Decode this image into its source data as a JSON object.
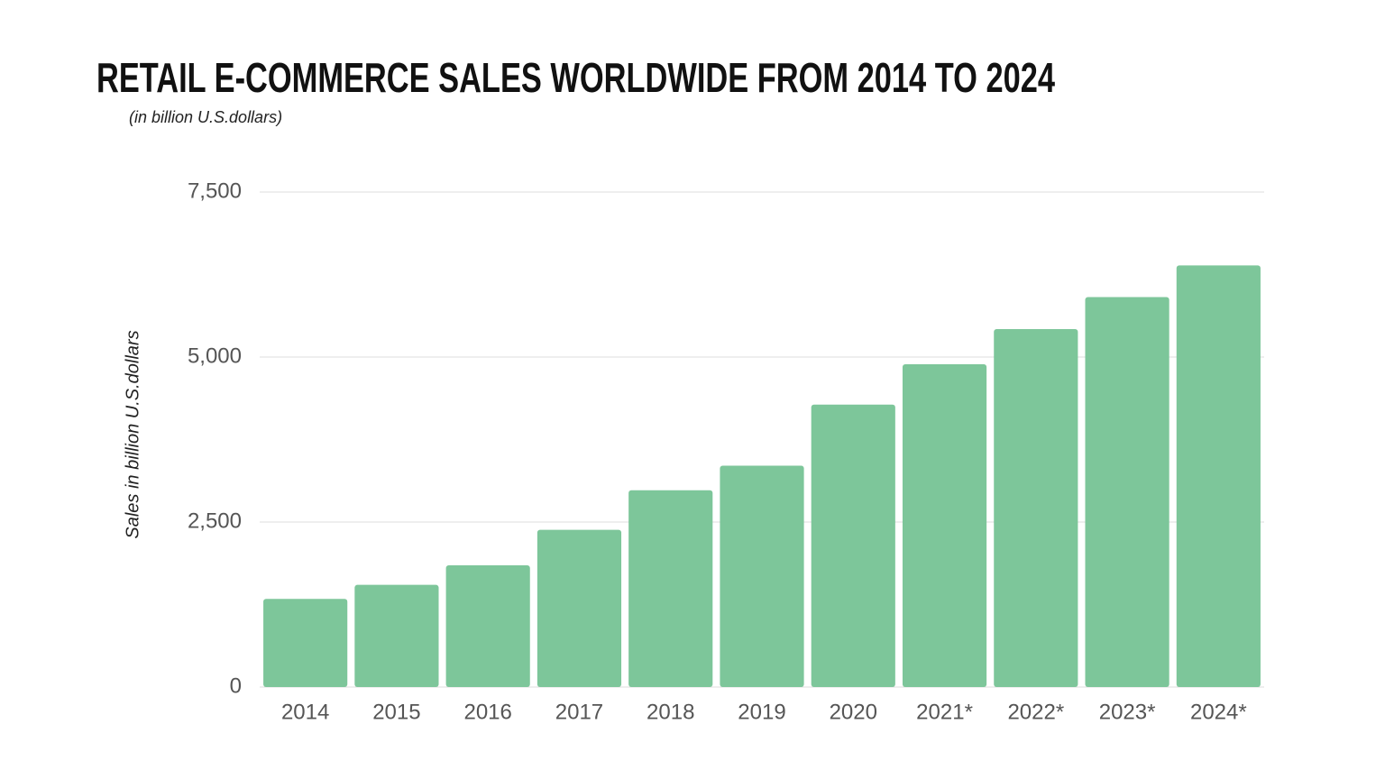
{
  "chart_data": {
    "type": "bar",
    "title": "RETAIL E-COMMERCE SALES WORLDWIDE FROM 2014 TO 2024",
    "subtitle": "(in billion U.S.dollars)",
    "y_label": "Sales in billion U.S.dollars",
    "categories": [
      "2014",
      "2015",
      "2016",
      "2017",
      "2018",
      "2019",
      "2020",
      "2021*",
      "2022*",
      "2023*",
      "2024*"
    ],
    "values": [
      1336,
      1548,
      1845,
      2382,
      2982,
      3354,
      4280,
      4891,
      5424,
      5908,
      6388
    ],
    "color": "#7dc69a",
    "ylim": [
      0,
      7500
    ],
    "yticks": [
      0,
      {
        "value": 2500,
        "label": "2,500"
      },
      {
        "value": 5000,
        "label": "5,000"
      },
      {
        "value": 7500,
        "label": "7,500"
      }
    ],
    "grid": true
  }
}
